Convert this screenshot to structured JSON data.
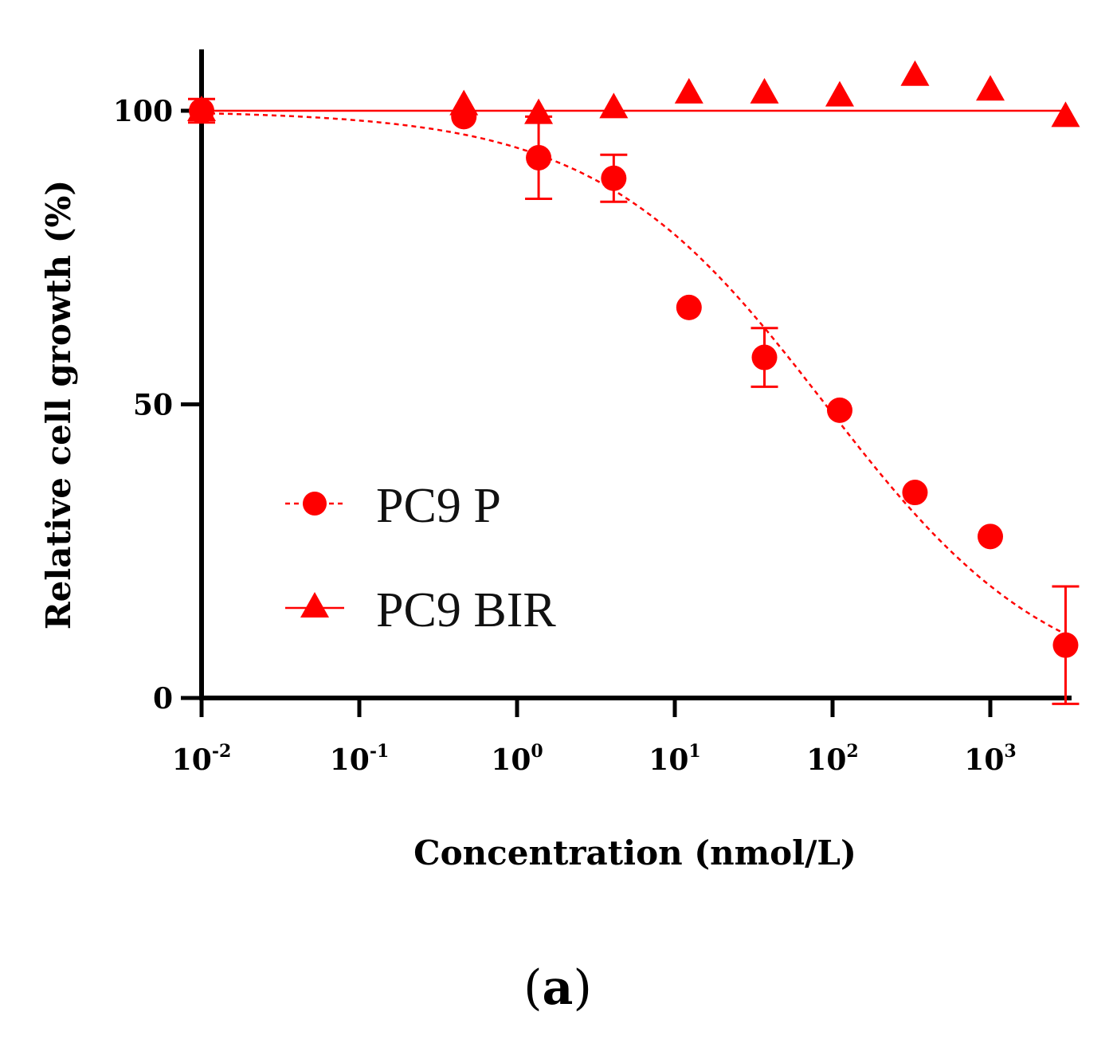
{
  "chart_data": {
    "type": "scatter",
    "xlabel": "Concentration (nmol/L)",
    "ylabel": "Relative cell growth (%)",
    "x_scale": "log10",
    "xlim": [
      0.01,
      3000
    ],
    "ylim": [
      0,
      112
    ],
    "yticks": [
      {
        "value": 0,
        "label": "0"
      },
      {
        "value": 50,
        "label": "50"
      },
      {
        "value": 100,
        "label": "100"
      }
    ],
    "xticks": [
      {
        "value": 0.01,
        "base": "10",
        "exp": "-2"
      },
      {
        "value": 0.1,
        "base": "10",
        "exp": "-1"
      },
      {
        "value": 1,
        "base": "10",
        "exp": "0"
      },
      {
        "value": 10,
        "base": "10",
        "exp": "1"
      },
      {
        "value": 100,
        "base": "10",
        "exp": "2"
      },
      {
        "value": 1000,
        "base": "10",
        "exp": "3"
      }
    ],
    "color": "#ff0000",
    "series": [
      {
        "name": "PC9 P",
        "marker": "circle",
        "line_style": "dashed",
        "x": [
          0.01,
          0.46,
          1.37,
          4.1,
          12.3,
          37,
          111,
          333,
          1000,
          3000
        ],
        "y": [
          100,
          99,
          92,
          88.5,
          66.5,
          58,
          49,
          35,
          27.5,
          9
        ],
        "err": [
          2,
          0,
          7,
          4,
          0,
          5,
          0,
          0,
          0,
          10
        ],
        "fit_curve": {
          "top": 100,
          "bottom": 0,
          "ec50": 90,
          "hill": 0.6
        }
      },
      {
        "name": "PC9 BIR",
        "marker": "triangle",
        "line_style": "solid",
        "x": [
          0.01,
          0.46,
          1.37,
          4.1,
          12.3,
          37,
          111,
          333,
          1000,
          3000
        ],
        "y": [
          100,
          101,
          99.5,
          100.5,
          103,
          103,
          102.5,
          106,
          103.5,
          99
        ],
        "err": [
          0,
          0,
          0,
          0,
          0,
          0,
          0,
          0,
          0,
          0
        ],
        "fit_line": 100
      }
    ],
    "legend_position": "center-left",
    "panel_label": {
      "open": "(",
      "letter": "a",
      "close": ")"
    },
    "grid": false
  }
}
